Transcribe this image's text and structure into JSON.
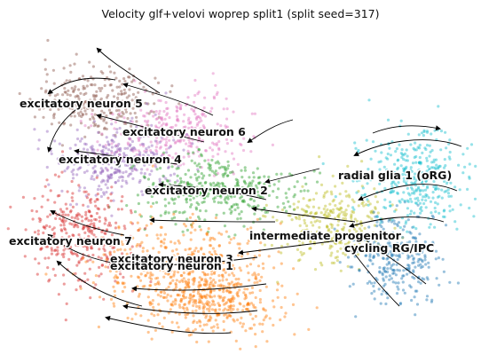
{
  "chart_data": {
    "type": "scatter",
    "title": "Velocity glf+velovi woprep split1 (split seed=317)",
    "xlabel": "",
    "ylabel": "",
    "axes_visible": false,
    "grid": false,
    "legend": "on-data",
    "overlay": "velocity streamlines with arrowheads",
    "clusters": [
      {
        "label": "excitatory neuron 5",
        "color": "#8c564b"
      },
      {
        "label": "excitatory neuron 6",
        "color": "#e377c2"
      },
      {
        "label": "excitatory neuron 4",
        "color": "#9467bd"
      },
      {
        "label": "excitatory neuron 2",
        "color": "#2ca02c"
      },
      {
        "label": "excitatory neuron 7",
        "color": "#d62728"
      },
      {
        "label": "excitatory neuron 3",
        "color": "#ff7f0e"
      },
      {
        "label": "excitatory neuron 1",
        "color": "#ff7f0e"
      },
      {
        "label": "intermediate progenitor",
        "color": "#bcbd22"
      },
      {
        "label": "cycling RG/IPC",
        "color": "#1f77b4"
      },
      {
        "label": "radial glia 1 (oRG)",
        "color": "#17becf"
      }
    ]
  }
}
